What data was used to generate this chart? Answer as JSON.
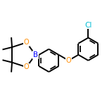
{
  "bg_color": "#ffffff",
  "bond_color": "#000000",
  "bond_width": 1.4,
  "atom_colors": {
    "B": "#0000ff",
    "O": "#ff8c00",
    "Cl": "#00bcd4",
    "C": "#000000"
  },
  "figsize": [
    1.52,
    1.52
  ],
  "dpi": 100
}
